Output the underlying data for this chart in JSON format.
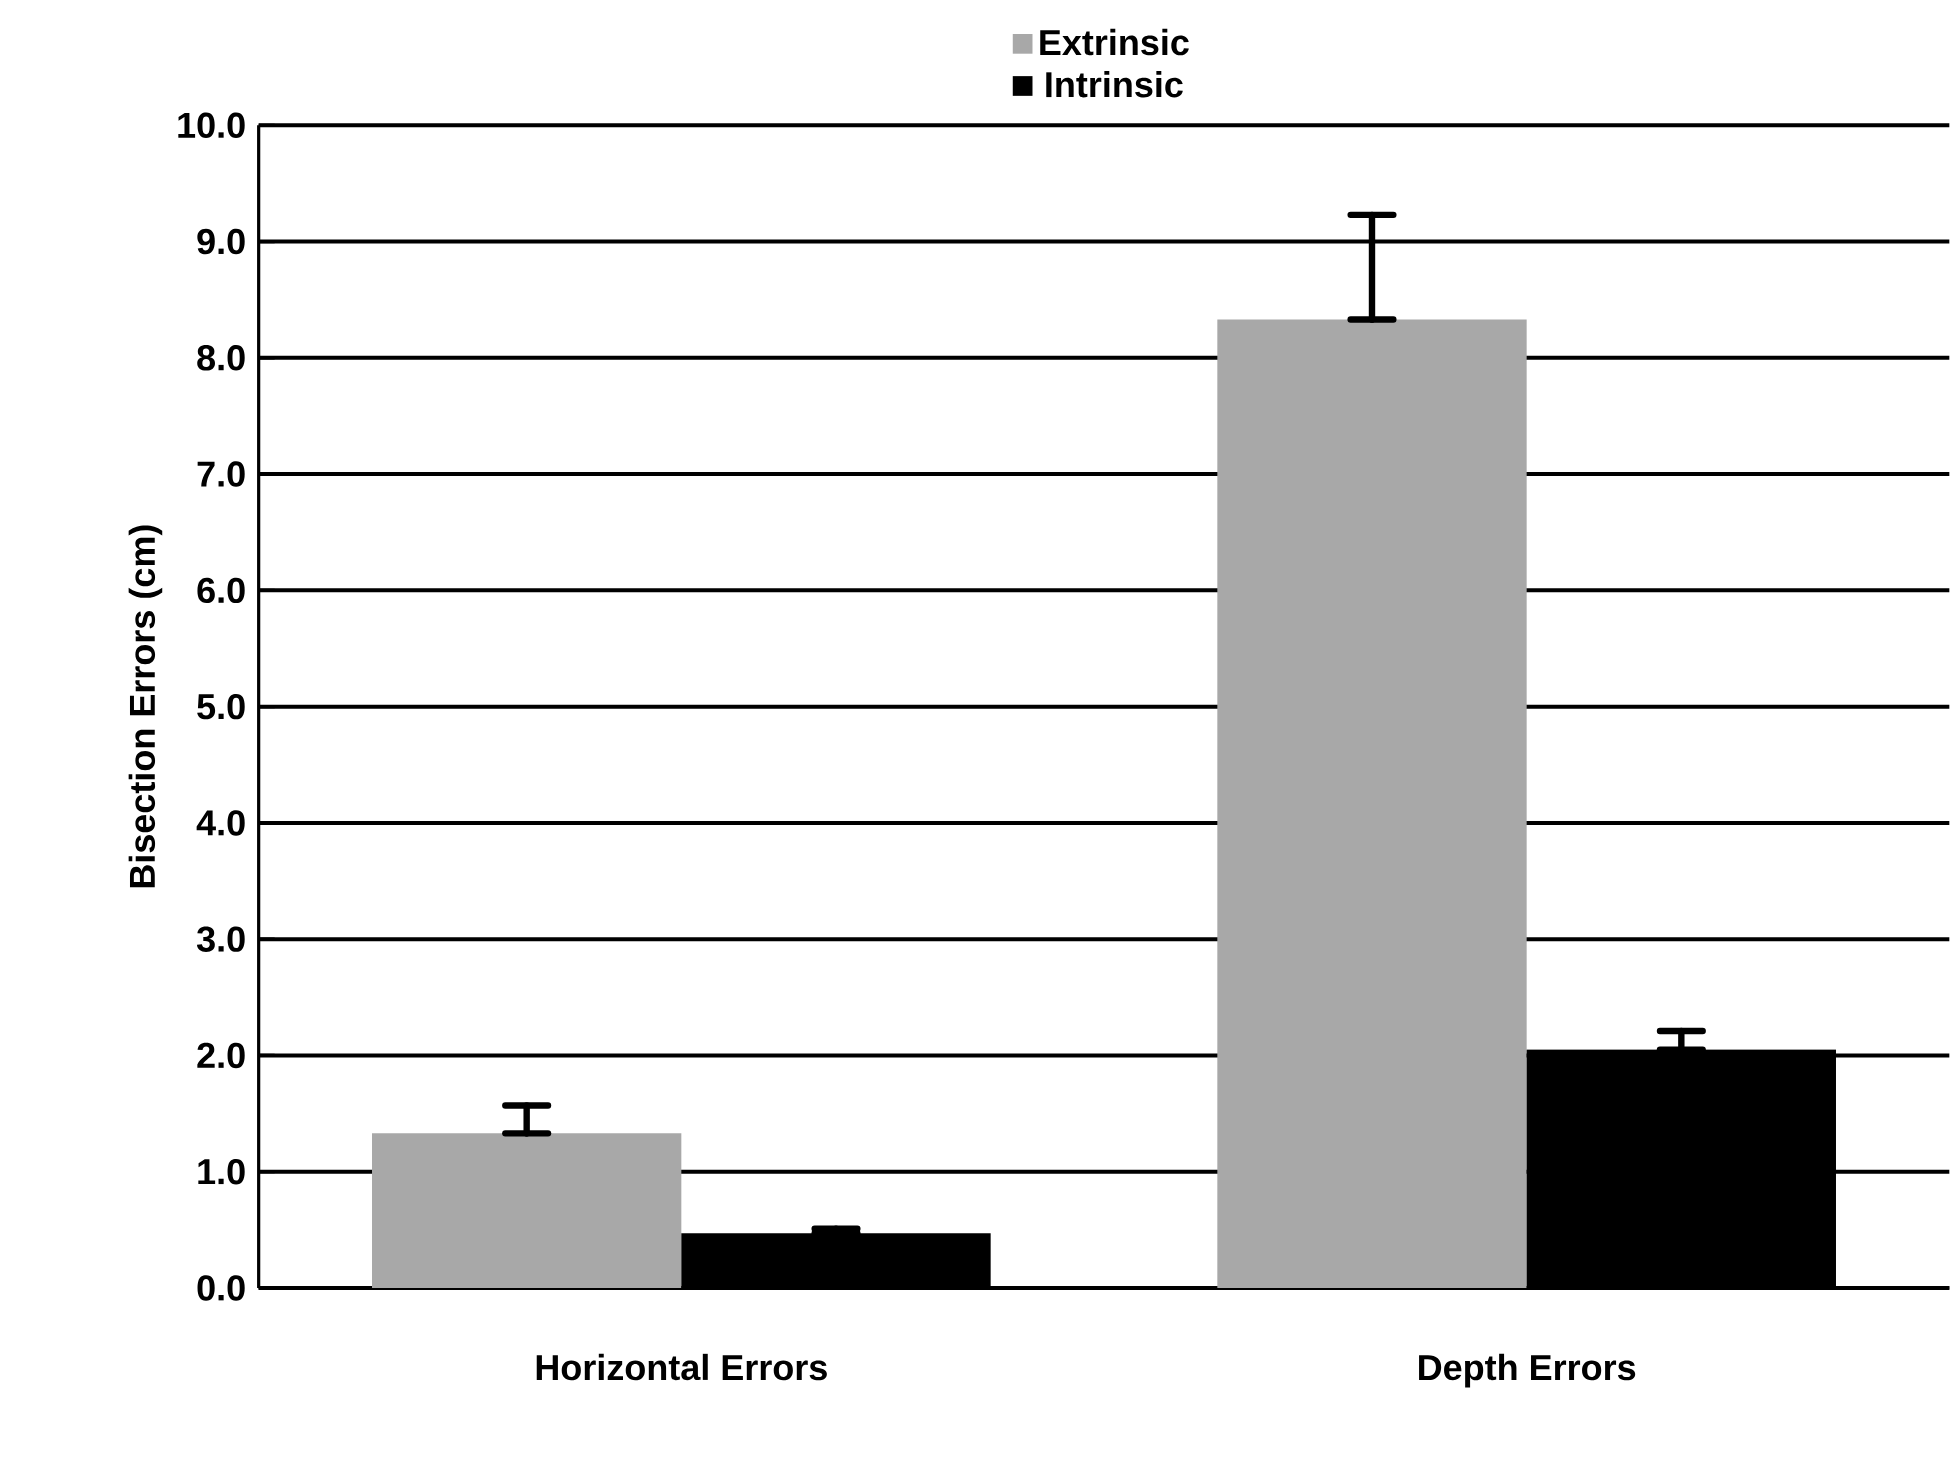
{
  "chart_data": {
    "type": "bar",
    "ylabel": "Bisection Errors (cm)",
    "categories": [
      "Horizontal Errors",
      "Depth Errors"
    ],
    "series": [
      {
        "name": "Extrinsic",
        "color": "#a8a8a8",
        "values": [
          1.33,
          8.33
        ],
        "errors": [
          [
            1.33,
            1.57
          ],
          [
            8.33,
            9.23
          ]
        ]
      },
      {
        "name": "Intrinsic",
        "color": "#000000",
        "values": [
          0.47,
          2.05
        ],
        "errors": [
          [
            0.47,
            0.51
          ],
          [
            2.05,
            2.21
          ]
        ]
      }
    ],
    "ylim": [
      0,
      10
    ],
    "yticks": [
      {
        "value": 0,
        "label": "0.0"
      },
      {
        "value": 1,
        "label": "1.0"
      },
      {
        "value": 2,
        "label": "2.0"
      },
      {
        "value": 3,
        "label": "3.0"
      },
      {
        "value": 4,
        "label": "4.0"
      },
      {
        "value": 5,
        "label": "5.0"
      },
      {
        "value": 6,
        "label": "6.0"
      },
      {
        "value": 7,
        "label": "7.0"
      },
      {
        "value": 8,
        "label": "8.0"
      },
      {
        "value": 9,
        "label": "9.0"
      },
      {
        "value": 10,
        "label": "10.0"
      }
    ],
    "grid": "y",
    "legend": "top"
  }
}
